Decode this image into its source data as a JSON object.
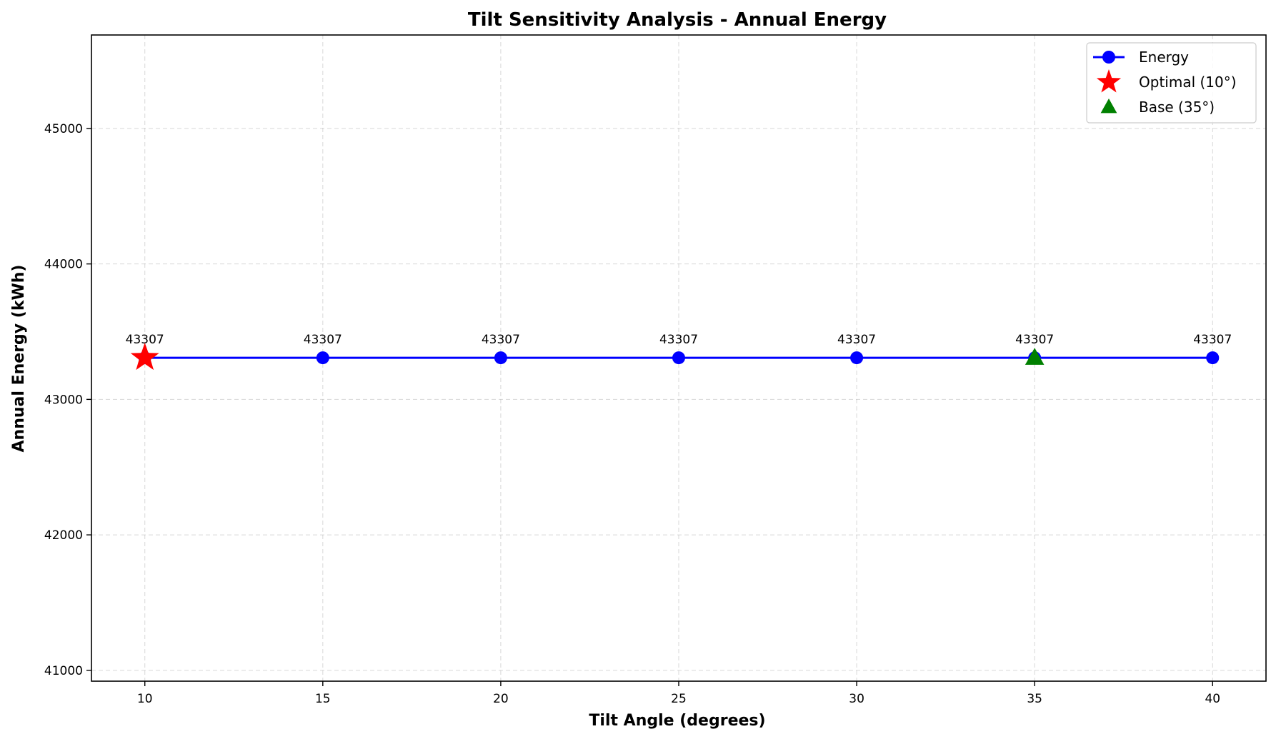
{
  "chart_data": {
    "type": "line",
    "title": "Tilt Sensitivity Analysis - Annual Energy",
    "xlabel": "Tilt Angle (degrees)",
    "ylabel": "Annual Energy (kWh)",
    "xlim": [
      8.5,
      41.5
    ],
    "ylim": [
      40920,
      45690
    ],
    "xticks": [
      10,
      15,
      20,
      25,
      30,
      35,
      40
    ],
    "yticks": [
      41000,
      42000,
      43000,
      44000,
      45000
    ],
    "grid": true,
    "legend_position": "top-right",
    "series": [
      {
        "name": "Energy",
        "color": "#0000ff",
        "marker": "circle",
        "x": [
          10,
          15,
          20,
          25,
          30,
          35,
          40
        ],
        "y": [
          43307,
          43307,
          43307,
          43307,
          43307,
          43307,
          43307
        ],
        "data_labels": [
          "43307",
          "43307",
          "43307",
          "43307",
          "43307",
          "43307",
          "43307"
        ]
      },
      {
        "name": "Optimal (10°)",
        "color": "#ff0000",
        "marker": "star",
        "x": [
          10
        ],
        "y": [
          43307
        ]
      },
      {
        "name": "Base (35°)",
        "color": "#008000",
        "marker": "triangle",
        "x": [
          35
        ],
        "y": [
          43307
        ]
      }
    ]
  }
}
